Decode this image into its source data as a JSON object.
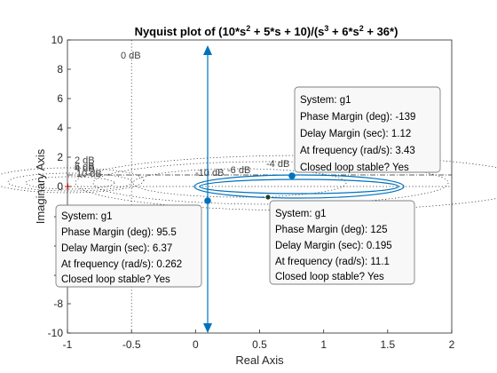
{
  "chart_data": {
    "type": "line",
    "title_main": "Nyquist plot of (10*s",
    "title_sup1": "2",
    "title_mid": " + 5*s + 10)/(s",
    "title_sup2": "3",
    "title_mid2": " + 6*s",
    "title_sup3": "2",
    "title_end": " + 36*)",
    "xlabel": "Real Axis",
    "ylabel": "Imaginary Axis",
    "xlim": [
      -1,
      2
    ],
    "ylim": [
      -10,
      10
    ],
    "xticks": [
      -1,
      -0.5,
      0,
      0.5,
      1,
      1.5,
      2
    ],
    "xtick_labels": [
      "-1",
      "-0.5",
      "0",
      "0.5",
      "1",
      "1.5",
      "2"
    ],
    "yticks": [
      -10,
      -8,
      -6,
      -4,
      -2,
      0,
      2,
      4,
      6,
      8,
      10
    ],
    "ytick_labels": [
      "-10",
      "-8",
      "-6",
      "-4",
      "-2",
      "0",
      "2",
      "4",
      "6",
      "8",
      "10"
    ],
    "grid_labels": {
      "zero": "0 dB",
      "m2": "2 dB",
      "m4": "4 dB",
      "m6": "6 dB",
      "m10": "10 dB",
      "n10": "-10 dB",
      "n6": "-6 dB",
      "n4": "-4 dB"
    },
    "colors": {
      "curve": "#0072BD",
      "grid": "#262626",
      "critical": "#ff0000",
      "datatip_bg": "#f8f8f8",
      "datatip_border": "#7f7f7f"
    },
    "datatips": [
      {
        "lines": [
          "System: g1",
          "Phase Margin (deg): -139",
          "Delay Margin (sec): 1.12",
          "At frequency (rad/s): 3.43",
          "Closed loop stable? Yes"
        ],
        "point": [
          0.76,
          0.7
        ]
      },
      {
        "lines": [
          "System: g1",
          "Phase Margin (deg): 95.5",
          "Delay Margin (sec): 6.37",
          "At frequency (rad/s): 0.262",
          "Closed loop stable? Yes"
        ],
        "point": [
          0.1,
          -0.9
        ]
      },
      {
        "lines": [
          "System: g1",
          "Phase Margin (deg): 125",
          "Delay Margin (sec): 0.195",
          "At frequency (rad/s): 11.1",
          "Closed loop stable? Yes"
        ],
        "point": [
          0.57,
          -0.65
        ]
      }
    ]
  }
}
